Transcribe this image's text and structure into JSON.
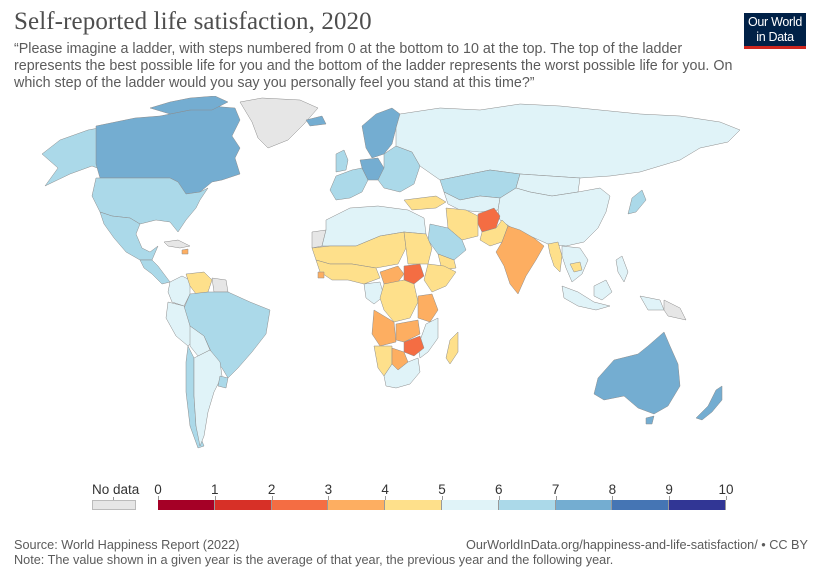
{
  "header": {
    "title": "Self-reported life satisfaction, 2020",
    "subtitle": "“Please imagine a ladder, with steps numbered from 0 at the bottom to 10 at the top. The top of the ladder represents the best possible life for you and the bottom of the ladder represents the worst possible life for you. On which step of the ladder would you say you personally feel you stand at this time?”",
    "logo_line1": "Our World",
    "logo_line2": "in Data"
  },
  "colors": {
    "no_data": "#e6e6e6",
    "bins": [
      "#a50026",
      "#d73027",
      "#f46d43",
      "#fdae61",
      "#fee08b",
      "#e0f3f8",
      "#abd9e9",
      "#74add1",
      "#4575b4",
      "#313695"
    ],
    "logo_bg": "#002147",
    "logo_accent": "#ce261e"
  },
  "legend": {
    "no_data_label": "No data",
    "ticks": [
      "0",
      "1",
      "2",
      "3",
      "4",
      "5",
      "6",
      "7",
      "8",
      "9",
      "10"
    ]
  },
  "map_data": {
    "indicator": "Life satisfaction (0-10)",
    "year": 2020,
    "regions": [
      {
        "name": "Canada",
        "bin": 7
      },
      {
        "name": "United States",
        "bin": 6
      },
      {
        "name": "Alaska",
        "bin": 6
      },
      {
        "name": "Greenland",
        "bin": null
      },
      {
        "name": "Mexico",
        "bin": 6
      },
      {
        "name": "Central America",
        "bin": 6
      },
      {
        "name": "Cuba",
        "bin": null
      },
      {
        "name": "Haiti",
        "bin": 3
      },
      {
        "name": "Venezuela",
        "bin": 4
      },
      {
        "name": "Colombia",
        "bin": 5
      },
      {
        "name": "Guianas",
        "bin": null
      },
      {
        "name": "Brazil",
        "bin": 6
      },
      {
        "name": "Peru",
        "bin": 5
      },
      {
        "name": "Bolivia",
        "bin": 5
      },
      {
        "name": "Chile",
        "bin": 6
      },
      {
        "name": "Argentina",
        "bin": 5
      },
      {
        "name": "Uruguay",
        "bin": 6
      },
      {
        "name": "Nordics",
        "bin": 7
      },
      {
        "name": "Iceland",
        "bin": 7
      },
      {
        "name": "United Kingdom",
        "bin": 6
      },
      {
        "name": "Western Europe",
        "bin": 6
      },
      {
        "name": "Germany",
        "bin": 7
      },
      {
        "name": "Eastern Europe",
        "bin": 6
      },
      {
        "name": "Russia",
        "bin": 5
      },
      {
        "name": "Kazakhstan",
        "bin": 6
      },
      {
        "name": "Central Asia",
        "bin": 5
      },
      {
        "name": "Mongolia",
        "bin": 5
      },
      {
        "name": "China",
        "bin": 5
      },
      {
        "name": "Japan",
        "bin": 6
      },
      {
        "name": "Turkey",
        "bin": 4
      },
      {
        "name": "Iran",
        "bin": 4
      },
      {
        "name": "Afghanistan",
        "bin": 2
      },
      {
        "name": "Pakistan",
        "bin": 4
      },
      {
        "name": "India",
        "bin": 3
      },
      {
        "name": "Myanmar",
        "bin": 4
      },
      {
        "name": "Saudi Arabia",
        "bin": 6
      },
      {
        "name": "Yemen",
        "bin": 4
      },
      {
        "name": "Southeast Asia",
        "bin": 5
      },
      {
        "name": "Cambodia",
        "bin": 4
      },
      {
        "name": "Indonesia",
        "bin": 5
      },
      {
        "name": "Papua New Guinea",
        "bin": null
      },
      {
        "name": "Australia",
        "bin": 7
      },
      {
        "name": "New Zealand",
        "bin": 7
      },
      {
        "name": "North Africa",
        "bin": 5
      },
      {
        "name": "Western Sahara",
        "bin": null
      },
      {
        "name": "Sahel",
        "bin": 4
      },
      {
        "name": "West Africa",
        "bin": 4
      },
      {
        "name": "Sierra Leone",
        "bin": 3
      },
      {
        "name": "Sudan",
        "bin": 4
      },
      {
        "name": "South Sudan",
        "bin": 2
      },
      {
        "name": "Central African Republic",
        "bin": 3
      },
      {
        "name": "Ethiopia",
        "bin": 4
      },
      {
        "name": "DR Congo",
        "bin": 4
      },
      {
        "name": "Congo",
        "bin": 5
      },
      {
        "name": "Tanzania",
        "bin": 3
      },
      {
        "name": "Angola",
        "bin": 3
      },
      {
        "name": "Zambia",
        "bin": 3
      },
      {
        "name": "Zimbabwe",
        "bin": 2
      },
      {
        "name": "Botswana",
        "bin": 3
      },
      {
        "name": "Namibia",
        "bin": 4
      },
      {
        "name": "Mozambique",
        "bin": 5
      },
      {
        "name": "South Africa",
        "bin": 5
      },
      {
        "name": "Madagascar",
        "bin": 4
      }
    ]
  },
  "footer": {
    "source": "Source: World Happiness Report (2022)",
    "url": "OurWorldInData.org/happiness-and-life-satisfaction/ • CC BY",
    "note": "Note: The value shown in a given year is the average of that year, the previous year and the following year."
  }
}
